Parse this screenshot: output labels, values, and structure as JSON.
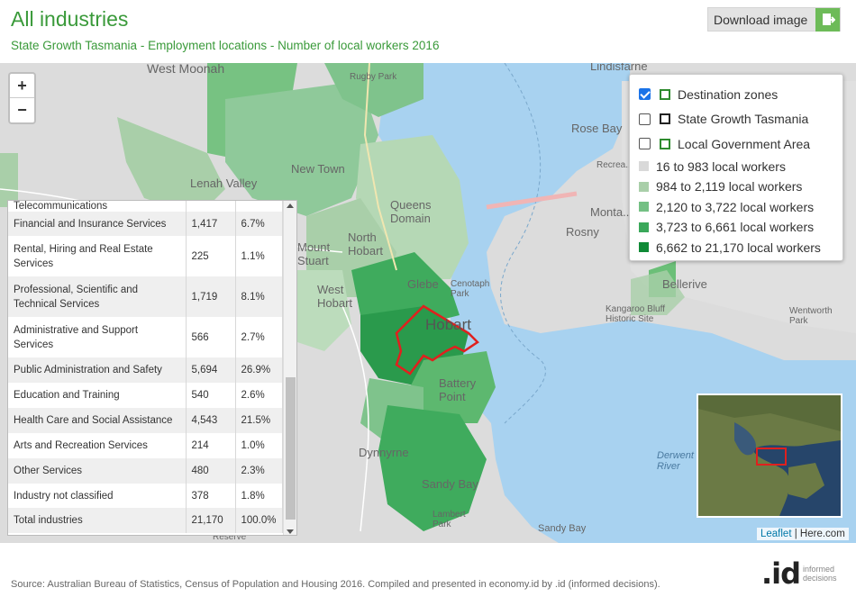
{
  "header": {
    "title": "All industries",
    "subtitle": "State Growth Tasmania - Employment locations - Number of local workers 2016",
    "download_label": "Download image"
  },
  "zoom": {
    "in": "+",
    "out": "−"
  },
  "legend": {
    "layers": [
      {
        "label": "Destination zones",
        "checked": true,
        "swatch": "green-outline"
      },
      {
        "label": "State Growth Tasmania",
        "checked": false,
        "swatch": "black-outline"
      },
      {
        "label": "Local Government Area",
        "checked": false,
        "swatch": "green-outline"
      }
    ],
    "classes": [
      {
        "label": "16 to 983 local workers",
        "color": "#d9d9d9"
      },
      {
        "label": "984 to 2,119 local workers",
        "color": "#a9cfa9"
      },
      {
        "label": "2,120 to 3,722 local workers",
        "color": "#74c084"
      },
      {
        "label": "3,723 to 6,661 local workers",
        "color": "#3aa85a"
      },
      {
        "label": "6,662 to 21,170 local workers",
        "color": "#0f8a36"
      }
    ]
  },
  "table": {
    "rows": [
      {
        "industry": "Telecommunications",
        "count": "",
        "pct": ""
      },
      {
        "industry": "Financial and Insurance Services",
        "count": "1,417",
        "pct": "6.7%"
      },
      {
        "industry": "Rental, Hiring and Real Estate Services",
        "count": "225",
        "pct": "1.1%"
      },
      {
        "industry": "Professional, Scientific and Technical Services",
        "count": "1,719",
        "pct": "8.1%"
      },
      {
        "industry": "Administrative and Support Services",
        "count": "566",
        "pct": "2.7%"
      },
      {
        "industry": "Public Administration and Safety",
        "count": "5,694",
        "pct": "26.9%"
      },
      {
        "industry": "Education and Training",
        "count": "540",
        "pct": "2.6%"
      },
      {
        "industry": "Health Care and Social Assistance",
        "count": "4,543",
        "pct": "21.5%"
      },
      {
        "industry": "Arts and Recreation Services",
        "count": "214",
        "pct": "1.0%"
      },
      {
        "industry": "Other Services",
        "count": "480",
        "pct": "2.3%"
      },
      {
        "industry": "Industry not classified",
        "count": "378",
        "pct": "1.8%"
      },
      {
        "industry": "Total industries",
        "count": "21,170",
        "pct": "100.0%"
      }
    ]
  },
  "map_labels": {
    "west_moonah": "West Moonah",
    "lindisfarne": "Lindisfarne",
    "rugby": "Rugby Park",
    "new_town": "New Town",
    "lenah": "Lenah Valley",
    "queens": "Queens Domain",
    "rose_bay": "Rose Bay",
    "recreation": "Recrea...",
    "montagu": "Monta...",
    "rosny": "Rosny",
    "north_hobart": "North Hobart",
    "mount_stuart": "Mount Stuart",
    "glebe": "Glebe",
    "cenotaph": "Cenotaph Park",
    "west_hobart": "West Hobart",
    "hobart": "Hobart",
    "bellerive": "Bellerive",
    "kangaroo": "Kangaroo Bluff Historic Site",
    "wentworth": "Wentworth Park",
    "battery": "Battery Point",
    "dynnyrne": "Dynnyrne",
    "sandy_bay": "Sandy Bay",
    "lambert": "Lambert Park",
    "sandy_bay2": "Sandy Bay",
    "derwent": "Derwent River",
    "reserve": "Reserve"
  },
  "attribution": {
    "leaflet": "Leaflet",
    "sep": " | ",
    "here": "Here.com"
  },
  "footer": {
    "source": "Source: Australian Bureau of Statistics, Census of Population and Housing 2016. Compiled and presented in economy.id by .id (informed decisions).",
    "logo": ".id",
    "logo_sub1": "informed",
    "logo_sub2": "decisions"
  }
}
